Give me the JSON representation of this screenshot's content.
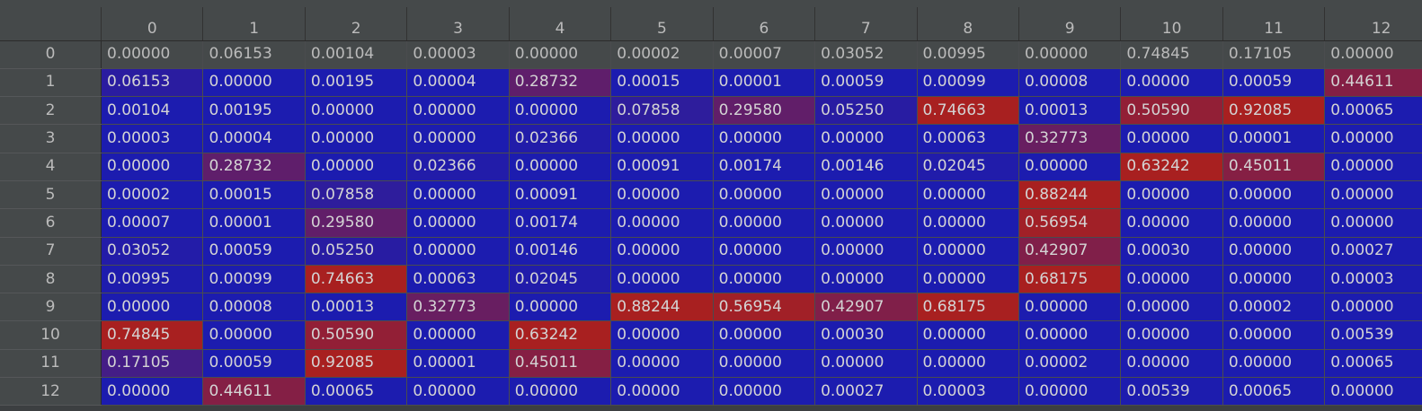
{
  "columns": [
    "0",
    "1",
    "2",
    "3",
    "4",
    "5",
    "6",
    "7",
    "8",
    "9",
    "10",
    "11",
    "12"
  ],
  "rows": [
    {
      "index": "0",
      "cells": [
        "0.00000",
        "0.06153",
        "0.00104",
        "0.00003",
        "0.00000",
        "0.00002",
        "0.00007",
        "0.03052",
        "0.00995",
        "0.00000",
        "0.74845",
        "0.17105",
        "0.00000"
      ]
    },
    {
      "index": "1",
      "cells": [
        "0.06153",
        "0.00000",
        "0.00195",
        "0.00004",
        "0.28732",
        "0.00015",
        "0.00001",
        "0.00059",
        "0.00099",
        "0.00008",
        "0.00000",
        "0.00059",
        "0.44611"
      ]
    },
    {
      "index": "2",
      "cells": [
        "0.00104",
        "0.00195",
        "0.00000",
        "0.00000",
        "0.00000",
        "0.07858",
        "0.29580",
        "0.05250",
        "0.74663",
        "0.00013",
        "0.50590",
        "0.92085",
        "0.00065"
      ]
    },
    {
      "index": "3",
      "cells": [
        "0.00003",
        "0.00004",
        "0.00000",
        "0.00000",
        "0.02366",
        "0.00000",
        "0.00000",
        "0.00000",
        "0.00063",
        "0.32773",
        "0.00000",
        "0.00001",
        "0.00000"
      ]
    },
    {
      "index": "4",
      "cells": [
        "0.00000",
        "0.28732",
        "0.00000",
        "0.02366",
        "0.00000",
        "0.00091",
        "0.00174",
        "0.00146",
        "0.02045",
        "0.00000",
        "0.63242",
        "0.45011",
        "0.00000"
      ]
    },
    {
      "index": "5",
      "cells": [
        "0.00002",
        "0.00015",
        "0.07858",
        "0.00000",
        "0.00091",
        "0.00000",
        "0.00000",
        "0.00000",
        "0.00000",
        "0.88244",
        "0.00000",
        "0.00000",
        "0.00000"
      ]
    },
    {
      "index": "6",
      "cells": [
        "0.00007",
        "0.00001",
        "0.29580",
        "0.00000",
        "0.00174",
        "0.00000",
        "0.00000",
        "0.00000",
        "0.00000",
        "0.56954",
        "0.00000",
        "0.00000",
        "0.00000"
      ]
    },
    {
      "index": "7",
      "cells": [
        "0.03052",
        "0.00059",
        "0.05250",
        "0.00000",
        "0.00146",
        "0.00000",
        "0.00000",
        "0.00000",
        "0.00000",
        "0.42907",
        "0.00030",
        "0.00000",
        "0.00027"
      ]
    },
    {
      "index": "8",
      "cells": [
        "0.00995",
        "0.00099",
        "0.74663",
        "0.00063",
        "0.02045",
        "0.00000",
        "0.00000",
        "0.00000",
        "0.00000",
        "0.68175",
        "0.00000",
        "0.00000",
        "0.00003"
      ]
    },
    {
      "index": "9",
      "cells": [
        "0.00000",
        "0.00008",
        "0.00013",
        "0.32773",
        "0.00000",
        "0.88244",
        "0.56954",
        "0.42907",
        "0.68175",
        "0.00000",
        "0.00000",
        "0.00002",
        "0.00000"
      ]
    },
    {
      "index": "10",
      "cells": [
        "0.74845",
        "0.00000",
        "0.50590",
        "0.00000",
        "0.63242",
        "0.00000",
        "0.00000",
        "0.00030",
        "0.00000",
        "0.00000",
        "0.00000",
        "0.00000",
        "0.00539"
      ]
    },
    {
      "index": "11",
      "cells": [
        "0.17105",
        "0.00059",
        "0.92085",
        "0.00001",
        "0.45011",
        "0.00000",
        "0.00000",
        "0.00000",
        "0.00000",
        "0.00002",
        "0.00000",
        "0.00000",
        "0.00065"
      ]
    },
    {
      "index": "12",
      "cells": [
        "0.00000",
        "0.44611",
        "0.00065",
        "0.00000",
        "0.00000",
        "0.00000",
        "0.00000",
        "0.00027",
        "0.00003",
        "0.00000",
        "0.00539",
        "0.00065",
        "0.00000"
      ]
    }
  ],
  "colors": {
    "header_bg": "#45494a",
    "header_text": "#bbbbbb",
    "low_value": "#1c1caf",
    "high_value": "#a82020"
  }
}
